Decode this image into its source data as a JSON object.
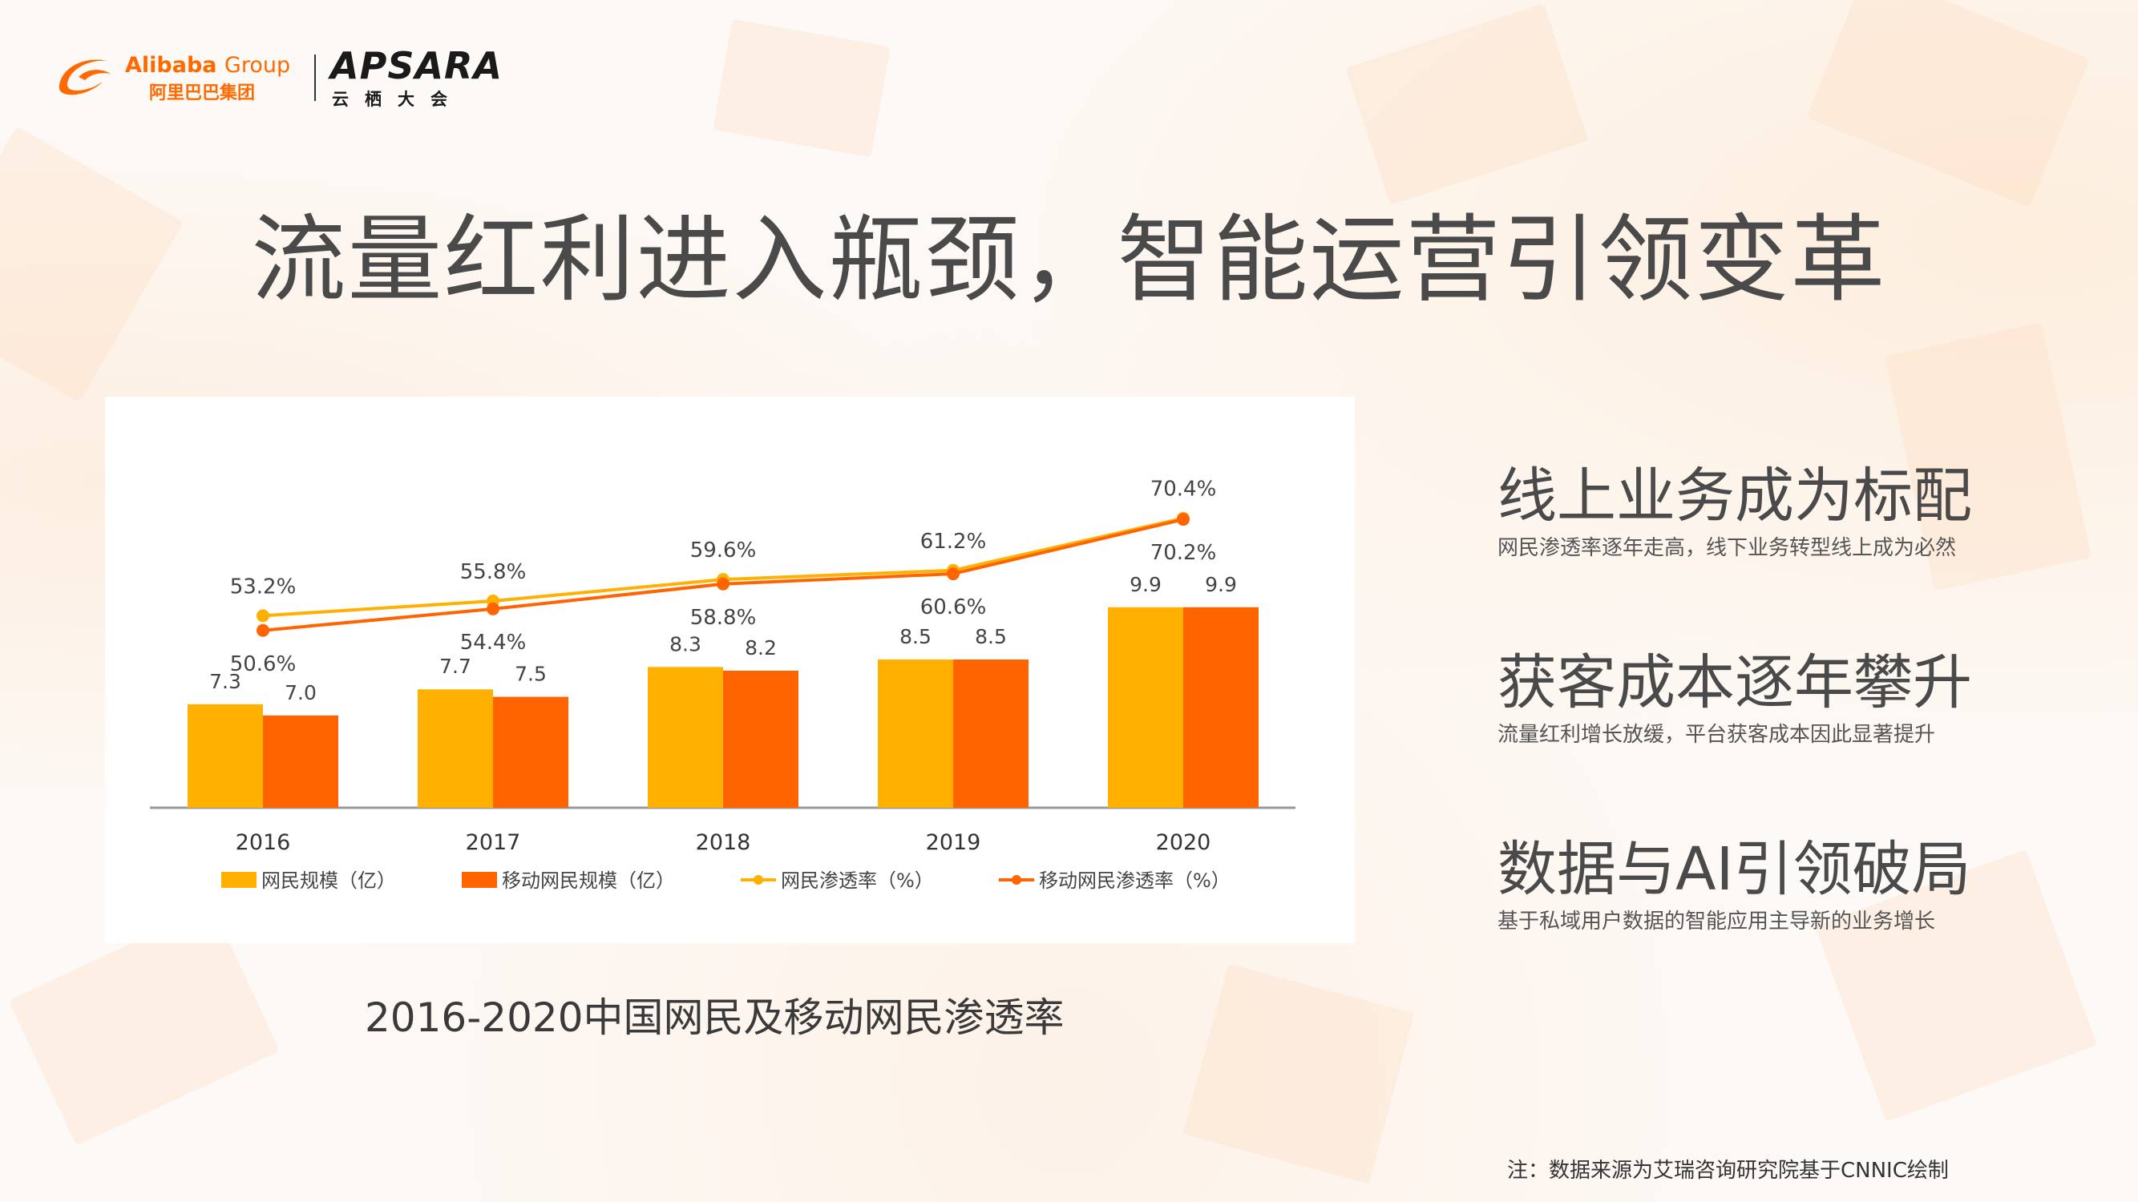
{
  "header": {
    "alibaba_name": "Alibaba",
    "alibaba_group": "Group",
    "alibaba_cn": "阿里巴巴集团",
    "apsara_word": "APSARA",
    "apsara_cn": "云栖大会"
  },
  "title": "流量红利进入瓶颈，智能运营引领变革",
  "chart_caption": "2016-2020中国网民及移动网民渗透率",
  "points": [
    {
      "title": "线上业务成为标配",
      "desc": "网民渗透率逐年走高，线下业务转型线上成为必然"
    },
    {
      "title": "获客成本逐年攀升",
      "desc": "流量红利增长放缓，平台获客成本因此显著提升"
    },
    {
      "title": "数据与AI引领破局",
      "desc": "基于私域用户数据的智能应用主导新的业务增长"
    }
  ],
  "footnote": "注：数据来源为艾瑞咨询研究院基于CNNIC绘制",
  "colors": {
    "brand": "#ff6a00",
    "netizen": "#ffb000",
    "mobile": "#ff6400"
  },
  "chart_data": {
    "type": "bar",
    "categories": [
      "2016",
      "2017",
      "2018",
      "2019",
      "2020"
    ],
    "ylim": [
      0,
      12
    ],
    "series": [
      {
        "name": "网民规模（亿）",
        "kind": "bar",
        "color": "#ffb000",
        "values": [
          7.3,
          7.7,
          8.3,
          8.5,
          9.9
        ],
        "labels": [
          "7.3",
          "7.7",
          "8.3",
          "8.5",
          "9.9"
        ]
      },
      {
        "name": "移动网民规模（亿）",
        "kind": "bar",
        "color": "#ff6400",
        "values": [
          7.0,
          7.5,
          8.2,
          8.5,
          9.9
        ],
        "labels": [
          "7.0",
          "7.5",
          "8.2",
          "8.5",
          "9.9"
        ]
      },
      {
        "name": "网民渗透率（%）",
        "kind": "line",
        "color": "#ffb000",
        "values": [
          53.2,
          55.8,
          59.6,
          61.2,
          70.4
        ],
        "labels": [
          "53.2%",
          "55.8%",
          "59.6%",
          "61.2%",
          "70.4%"
        ]
      },
      {
        "name": "移动网民渗透率（%）",
        "kind": "line",
        "color": "#ff6400",
        "values": [
          50.6,
          54.4,
          58.8,
          60.6,
          70.2
        ],
        "labels": [
          "50.6%",
          "54.4%",
          "58.8%",
          "60.6%",
          "70.2%"
        ]
      }
    ]
  }
}
